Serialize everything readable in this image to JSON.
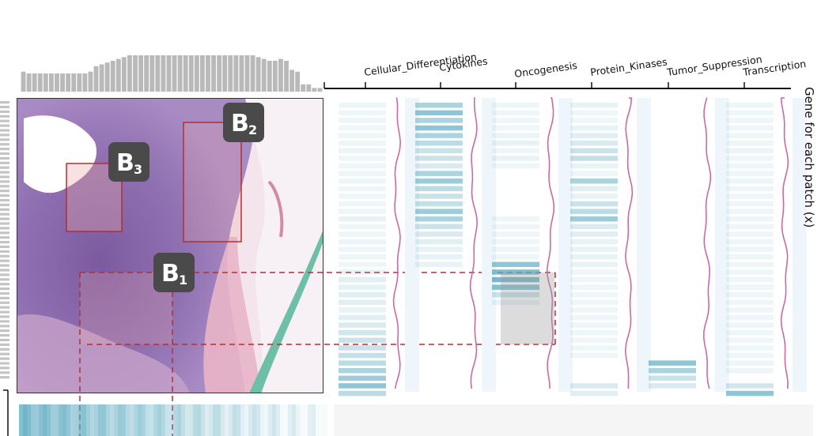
{
  "categories": [
    "Cellular_Differentiation",
    "Cytokines",
    "Oncogenesis",
    "Protein_Kinases",
    "Tumor_Suppression",
    "Transcription"
  ],
  "axis_title": "Gene for each patch (x)",
  "badges": [
    {
      "letter": "B",
      "sub": "1"
    },
    {
      "letter": "B",
      "sub": "2"
    },
    {
      "letter": "B",
      "sub": "3"
    }
  ],
  "colors": {
    "band": "#5aa9bf",
    "curve": "#c86aa6",
    "highlight_box": "#b03030",
    "dashed": "#b03030",
    "histogram": "#b9b9b9",
    "badge_bg": "#4a4a4a",
    "tissue_purple": "#8e6cab",
    "tissue_pink": "#e6b9c8",
    "tissue_green": "#6dbfa8"
  },
  "histogram_levels": [
    0.55,
    0.5,
    0.5,
    0.5,
    0.5,
    0.5,
    0.5,
    0.5,
    0.5,
    0.5,
    0.5,
    0.5,
    0.55,
    0.7,
    0.75,
    0.8,
    0.85,
    0.9,
    0.95,
    1,
    1,
    1,
    1,
    1,
    1,
    1,
    1,
    1,
    1,
    1,
    1,
    1,
    1,
    1,
    1,
    1,
    1,
    1,
    1,
    1,
    1,
    1,
    0.95,
    0.9,
    0.85,
    0.85,
    0.9,
    0.85,
    0.6,
    0.55,
    0.2,
    0.2,
    0.1,
    0.1
  ],
  "column_intensities": [
    [
      0.05,
      0.05,
      0.05,
      0.05,
      0.05,
      0.05,
      0.08,
      0.05,
      0.05,
      0.05,
      0.05,
      0.05,
      0.05,
      0.05,
      0.05,
      0.1,
      0.05,
      0.05,
      0.08,
      0.05,
      0.05,
      0.05,
      0.1,
      0.15,
      0.12,
      0.15,
      0.15,
      0.1,
      0.15,
      0.2,
      0.25,
      0.3,
      0.3,
      0.35,
      0.4,
      0.5,
      0.6,
      0.7,
      0.4
    ],
    [
      0.5,
      0.7,
      0.5,
      0.7,
      0.5,
      0.4,
      0.3,
      0.3,
      0.2,
      0.5,
      0.6,
      0.4,
      0.3,
      0.35,
      0.6,
      0.5,
      0.3,
      0.2,
      0.15,
      0.1,
      0.1,
      0.1,
      0,
      0,
      0,
      0,
      0,
      0,
      0,
      0,
      0,
      0,
      0,
      0,
      0,
      0,
      0,
      0,
      0
    ],
    [
      0.05,
      0.05,
      0.05,
      0.05,
      0.08,
      0.1,
      0.05,
      0.1,
      0.05,
      0,
      0,
      0,
      0,
      0,
      0,
      0.05,
      0.05,
      0.05,
      0.05,
      0.05,
      0.05,
      0.7,
      0.8,
      0.85,
      0.75,
      0.3,
      0.1,
      0,
      0,
      0,
      0,
      0,
      0,
      0,
      0,
      0,
      0,
      0,
      0
    ],
    [
      0.1,
      0.05,
      0.05,
      0.1,
      0.15,
      0.2,
      0.3,
      0.35,
      0.1,
      0.05,
      0.5,
      0.15,
      0.1,
      0.3,
      0.4,
      0.6,
      0.2,
      0.15,
      0.1,
      0.1,
      0.1,
      0.1,
      0.05,
      0.05,
      0.05,
      0.05,
      0.05,
      0.05,
      0.05,
      0.05,
      0.05,
      0.05,
      0.05,
      0.05,
      0,
      0,
      0,
      0.2,
      0.15
    ],
    [
      0,
      0,
      0,
      0,
      0,
      0,
      0,
      0,
      0,
      0,
      0,
      0,
      0,
      0,
      0,
      0,
      0,
      0,
      0,
      0,
      0,
      0,
      0,
      0,
      0,
      0,
      0,
      0,
      0,
      0,
      0,
      0,
      0,
      0,
      0.7,
      0.5,
      0.3,
      0.2,
      0
    ],
    [
      0.05,
      0.05,
      0.05,
      0.05,
      0.05,
      0.05,
      0.08,
      0.05,
      0.05,
      0.05,
      0.05,
      0.05,
      0.05,
      0.05,
      0.05,
      0.05,
      0.05,
      0.05,
      0.05,
      0.05,
      0.05,
      0.05,
      0.05,
      0.05,
      0.05,
      0.05,
      0.05,
      0.05,
      0.05,
      0.05,
      0.05,
      0.05,
      0.05,
      0.05,
      0.05,
      0.05,
      0,
      0.25,
      0.7
    ]
  ]
}
